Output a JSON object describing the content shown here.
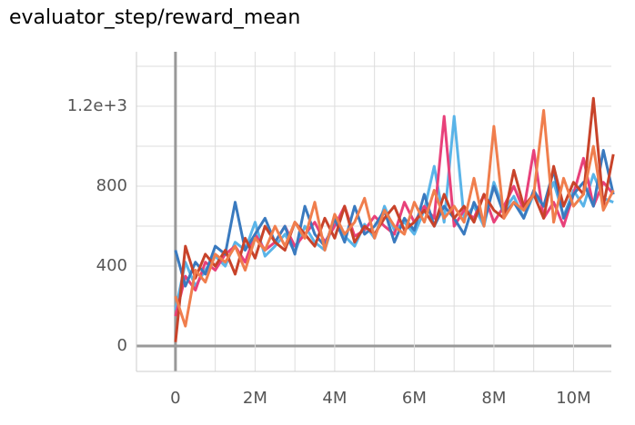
{
  "chart_data": {
    "type": "line",
    "title": "evaluator_step/reward_mean",
    "x": [
      0,
      250000,
      500000,
      750000,
      1000000,
      1250000,
      1500000,
      1750000,
      2000000,
      2250000,
      2500000,
      2750000,
      3000000,
      3250000,
      3500000,
      3750000,
      4000000,
      4250000,
      4500000,
      4750000,
      5000000,
      5250000,
      5500000,
      5750000,
      6000000,
      6250000,
      6500000,
      6750000,
      7000000,
      7250000,
      7500000,
      7750000,
      8000000,
      8250000,
      8500000,
      8750000,
      9000000,
      9250000,
      9500000,
      9750000,
      10000000,
      10250000,
      10500000,
      10750000,
      11000000
    ],
    "series": [
      {
        "color": "#5ab4e8",
        "values": [
          180,
          420,
          300,
          380,
          450,
          400,
          520,
          480,
          620,
          450,
          500,
          560,
          470,
          600,
          520,
          480,
          640,
          550,
          500,
          610,
          540,
          700,
          580,
          620,
          560,
          680,
          900,
          620,
          1150,
          640,
          700,
          600,
          820,
          680,
          750,
          640,
          760,
          700,
          820,
          650,
          780,
          700,
          860,
          740,
          720
        ]
      },
      {
        "color": "#e8417a",
        "values": [
          150,
          350,
          280,
          420,
          380,
          460,
          500,
          420,
          560,
          480,
          520,
          600,
          500,
          560,
          620,
          520,
          600,
          700,
          550,
          580,
          650,
          600,
          560,
          720,
          620,
          700,
          640,
          1150,
          600,
          680,
          640,
          760,
          620,
          700,
          800,
          680,
          980,
          640,
          720,
          600,
          760,
          940,
          700,
          820,
          760
        ]
      },
      {
        "color": "#3a7abf",
        "values": [
          480,
          300,
          420,
          360,
          500,
          460,
          720,
          480,
          560,
          640,
          520,
          600,
          460,
          700,
          560,
          500,
          640,
          520,
          700,
          560,
          600,
          680,
          520,
          640,
          580,
          760,
          600,
          700,
          640,
          560,
          720,
          620,
          800,
          660,
          720,
          640,
          780,
          700,
          880,
          640,
          760,
          820,
          700,
          980,
          760
        ]
      },
      {
        "color": "#c8432a",
        "values": [
          20,
          500,
          340,
          460,
          400,
          480,
          360,
          540,
          440,
          600,
          520,
          480,
          620,
          560,
          500,
          640,
          540,
          700,
          520,
          600,
          560,
          640,
          700,
          580,
          620,
          680,
          600,
          760,
          640,
          700,
          620,
          760,
          680,
          640,
          880,
          700,
          760,
          640,
          900,
          700,
          820,
          760,
          1240,
          700,
          960
        ]
      },
      {
        "color": "#f07e4d",
        "values": [
          250,
          100,
          380,
          320,
          460,
          420,
          500,
          380,
          540,
          480,
          600,
          500,
          620,
          540,
          720,
          480,
          660,
          560,
          620,
          740,
          540,
          680,
          600,
          560,
          720,
          620,
          780,
          640,
          700,
          620,
          840,
          600,
          1100,
          640,
          720,
          680,
          760,
          1180,
          620,
          840,
          700,
          760,
          1000,
          680,
          780
        ]
      }
    ],
    "xlim": [
      -980000,
      10950000
    ],
    "xticks": [
      0,
      {
        "value": 2000000,
        "label": "2M"
      },
      {
        "value": 4000000,
        "label": "4M"
      },
      {
        "value": 6000000,
        "label": "6M"
      },
      {
        "value": 8000000,
        "label": "8M"
      },
      {
        "value": 10000000,
        "label": "10M"
      }
    ],
    "xminorticks": [
      1000000,
      3000000,
      5000000,
      7000000,
      9000000
    ],
    "ylim": [
      -127,
      1473
    ],
    "yticks": [
      0,
      400,
      800,
      {
        "value": 1200,
        "label": "1.2e+3"
      }
    ],
    "yminorticks": [
      200,
      600,
      1000,
      1400
    ],
    "grid": true
  }
}
